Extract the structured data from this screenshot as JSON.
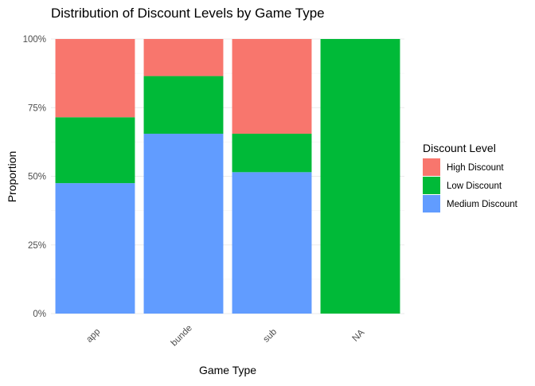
{
  "chart_data": {
    "type": "bar",
    "stacked": true,
    "normalized": true,
    "title": "Distribution of Discount Levels by Game Type",
    "xlabel": "Game Type",
    "ylabel": "Proportion",
    "ylim": [
      0,
      1
    ],
    "y_ticks": [
      {
        "value": 0,
        "label": "0%"
      },
      {
        "value": 0.25,
        "label": "25%"
      },
      {
        "value": 0.5,
        "label": "50%"
      },
      {
        "value": 0.75,
        "label": "75%"
      },
      {
        "value": 1,
        "label": "100%"
      }
    ],
    "categories": [
      "app",
      "bunde",
      "sub",
      "NA"
    ],
    "series": [
      {
        "name": "Medium Discount",
        "color": "#619CFF",
        "values": [
          0.475,
          0.655,
          0.515,
          0
        ]
      },
      {
        "name": "Low Discount",
        "color": "#00BA38",
        "values": [
          0.24,
          0.21,
          0.14,
          1.0
        ]
      },
      {
        "name": "High Discount",
        "color": "#F8766D",
        "values": [
          0.285,
          0.135,
          0.345,
          0
        ]
      }
    ],
    "legend": {
      "title": "Discount Level",
      "placement": "right",
      "order": [
        "High Discount",
        "Low Discount",
        "Medium Discount"
      ]
    },
    "grid": true,
    "x_tick_rotation": 45
  }
}
